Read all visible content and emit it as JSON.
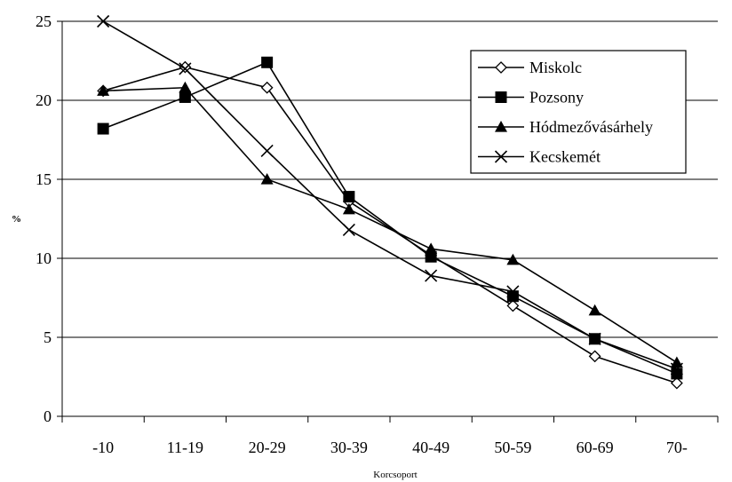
{
  "chart_data": {
    "type": "line",
    "title": "",
    "xlabel": "Korcsoport",
    "ylabel": "%",
    "categories": [
      "-10",
      "11-19",
      "20-29",
      "30-39",
      "40-49",
      "50-59",
      "60-69",
      "70-"
    ],
    "ylim": [
      0,
      25
    ],
    "yticks": [
      0,
      5,
      10,
      15,
      20,
      25
    ],
    "grid": "horizontal",
    "legend": "top-right",
    "series": [
      {
        "name": "Miskolc",
        "marker": "diamond-open",
        "values": [
          20.6,
          22.1,
          20.8,
          13.6,
          10.2,
          7.0,
          3.8,
          2.1
        ]
      },
      {
        "name": "Pozsony",
        "marker": "square",
        "values": [
          18.2,
          20.2,
          22.4,
          13.9,
          10.1,
          7.6,
          4.9,
          2.7
        ]
      },
      {
        "name": "Hódmezővásárhely",
        "marker": "triangle",
        "values": [
          20.6,
          20.8,
          15.0,
          13.1,
          10.6,
          9.9,
          6.7,
          3.4
        ]
      },
      {
        "name": "Kecskemét",
        "marker": "x",
        "values": [
          25.0,
          22.0,
          16.8,
          11.8,
          8.9,
          7.9,
          4.9,
          3.0
        ]
      }
    ]
  }
}
